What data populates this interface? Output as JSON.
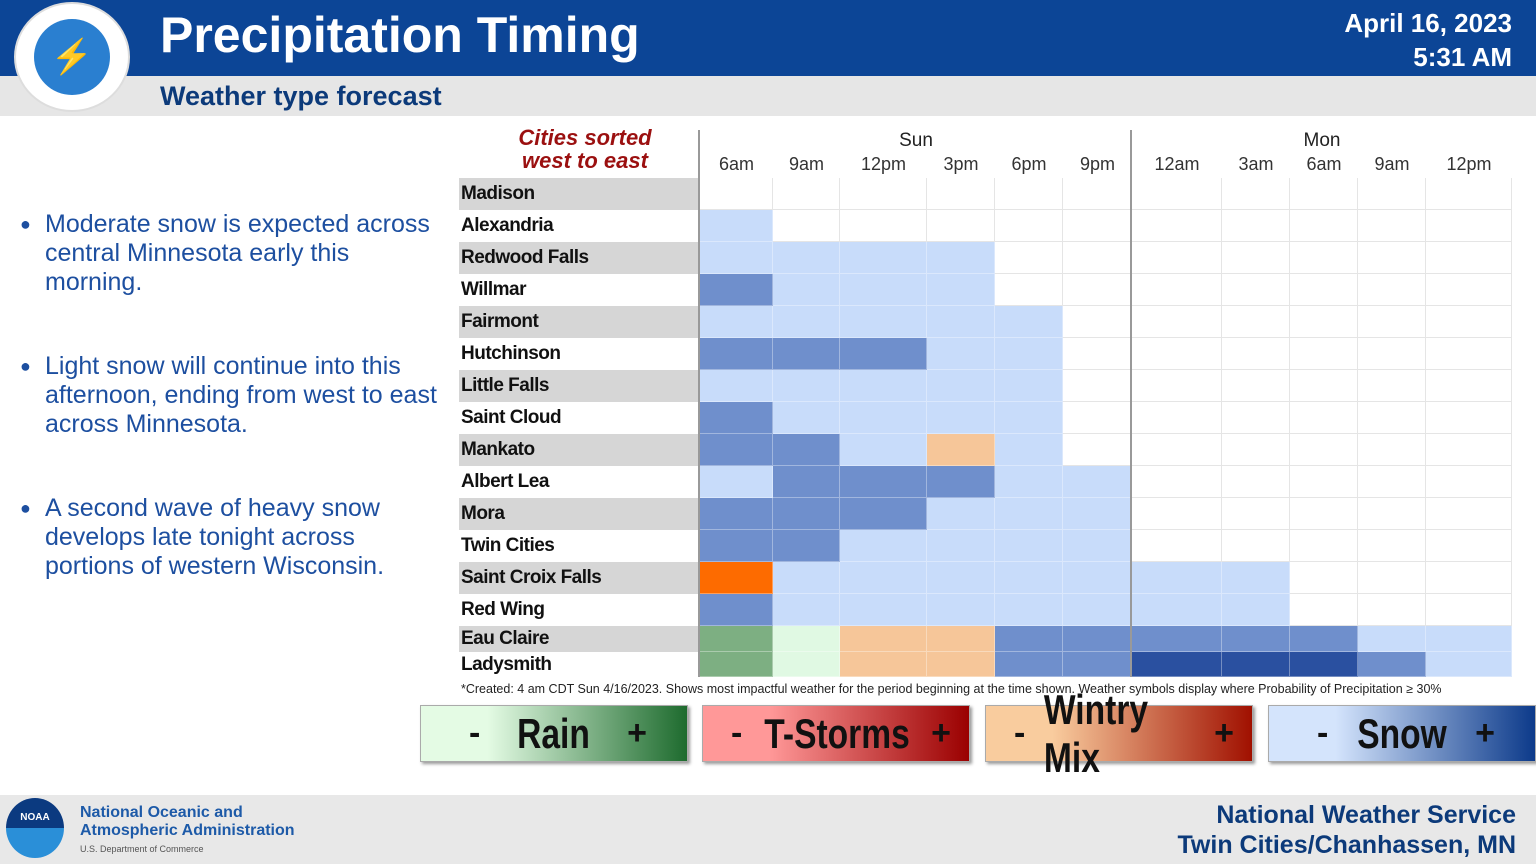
{
  "header": {
    "title": "Precipitation Timing",
    "subtitle": "Weather type forecast",
    "date": "April 16, 2023",
    "time": "5:31 AM",
    "logo_text": "NATIONAL WEATHER SERVICE"
  },
  "bullets": [
    "Moderate snow is expected across central Minnesota early this morning.",
    "Light snow will continue into this afternoon, ending from west to east across Minnesota.",
    "A second wave of heavy snow develops late tonight across portions of western Wisconsin."
  ],
  "chart": {
    "sorted_label_1": "Cities sorted",
    "sorted_label_2": "west to east",
    "days": [
      "Sun",
      "Mon"
    ],
    "times": [
      "6am",
      "9am",
      "12pm",
      "3pm",
      "6pm",
      "9pm",
      "12am",
      "3am",
      "6am",
      "9am",
      "12pm"
    ],
    "colors": {
      "0": "#ffffff",
      "s1": "#c8dcfa",
      "s2": "#6f8fcc",
      "s3": "#2a50a0",
      "r1": "#e0f9e3",
      "r2": "#7daf82",
      "m1": "#f6c699",
      "m3": "#fd6b00"
    },
    "rows": [
      {
        "city": "Madison",
        "cells": [
          "0",
          "0",
          "0",
          "0",
          "0",
          "0",
          "0",
          "0",
          "0",
          "0",
          "0"
        ]
      },
      {
        "city": "Alexandria",
        "cells": [
          "s1",
          "0",
          "0",
          "0",
          "0",
          "0",
          "0",
          "0",
          "0",
          "0",
          "0"
        ]
      },
      {
        "city": "Redwood Falls",
        "cells": [
          "s1",
          "s1",
          "s1",
          "s1",
          "0",
          "0",
          "0",
          "0",
          "0",
          "0",
          "0"
        ]
      },
      {
        "city": "Willmar",
        "cells": [
          "s2",
          "s1",
          "s1",
          "s1",
          "0",
          "0",
          "0",
          "0",
          "0",
          "0",
          "0"
        ]
      },
      {
        "city": "Fairmont",
        "cells": [
          "s1",
          "s1",
          "s1",
          "s1",
          "s1",
          "0",
          "0",
          "0",
          "0",
          "0",
          "0"
        ]
      },
      {
        "city": "Hutchinson",
        "cells": [
          "s2",
          "s2",
          "s2",
          "s1",
          "s1",
          "0",
          "0",
          "0",
          "0",
          "0",
          "0"
        ]
      },
      {
        "city": "Little Falls",
        "cells": [
          "s1",
          "s1",
          "s1",
          "s1",
          "s1",
          "0",
          "0",
          "0",
          "0",
          "0",
          "0"
        ]
      },
      {
        "city": "Saint Cloud",
        "cells": [
          "s2",
          "s1",
          "s1",
          "s1",
          "s1",
          "0",
          "0",
          "0",
          "0",
          "0",
          "0"
        ]
      },
      {
        "city": "Mankato",
        "cells": [
          "s2",
          "s2",
          "s1",
          "m1",
          "s1",
          "0",
          "0",
          "0",
          "0",
          "0",
          "0"
        ]
      },
      {
        "city": "Albert Lea",
        "cells": [
          "s1",
          "s2",
          "s2",
          "s2",
          "s1",
          "s1",
          "0",
          "0",
          "0",
          "0",
          "0"
        ]
      },
      {
        "city": "Mora",
        "cells": [
          "s2",
          "s2",
          "s2",
          "s1",
          "s1",
          "s1",
          "0",
          "0",
          "0",
          "0",
          "0"
        ]
      },
      {
        "city": "Twin Cities",
        "cells": [
          "s2",
          "s2",
          "s1",
          "s1",
          "s1",
          "s1",
          "0",
          "0",
          "0",
          "0",
          "0"
        ]
      },
      {
        "city": "Saint Croix Falls",
        "cells": [
          "m3",
          "s1",
          "s1",
          "s1",
          "s1",
          "s1",
          "s1",
          "s1",
          "0",
          "0",
          "0"
        ]
      },
      {
        "city": "Red Wing",
        "cells": [
          "s2",
          "s1",
          "s1",
          "s1",
          "s1",
          "s1",
          "s1",
          "s1",
          "0",
          "0",
          "0"
        ]
      },
      {
        "city": "Eau Claire",
        "cells": [
          "r2",
          "r1",
          "m1",
          "m1",
          "s2",
          "s2",
          "s2",
          "s2",
          "s2",
          "s1",
          "s1"
        ]
      },
      {
        "city": "Ladysmith",
        "cells": [
          "r2",
          "r1",
          "m1",
          "m1",
          "s2",
          "s2",
          "s3",
          "s3",
          "s3",
          "s2",
          "s1"
        ]
      }
    ],
    "note": "*Created: 4 am CDT Sun 4/16/2023. Shows most impactful weather for the period beginning at the time shown. Weather symbols display where Probability of Precipitation ≥ 30%"
  },
  "legend": [
    {
      "label": "Rain",
      "minus": "-",
      "plus": "+",
      "from": "#e4fbe4",
      "to": "#1e6b2e"
    },
    {
      "label": "T-Storms",
      "minus": "-",
      "plus": "+",
      "from": "#ff9898",
      "to": "#9a0000"
    },
    {
      "label": "Wintry Mix",
      "minus": "-",
      "plus": "+",
      "from": "#f9cc9e",
      "to": "#a01000"
    },
    {
      "label": "Snow",
      "minus": "-",
      "plus": "+",
      "from": "#d4e4fc",
      "to": "#0c3a8a"
    }
  ],
  "footer": {
    "noaa_logo": "NOAA",
    "noaa_line1": "National Oceanic and",
    "noaa_line2": "Atmospheric Administration",
    "noaa_dept": "U.S. Department of Commerce",
    "nws_line1": "National Weather Service",
    "nws_line2": "Twin Cities/Chanhassen, MN"
  }
}
